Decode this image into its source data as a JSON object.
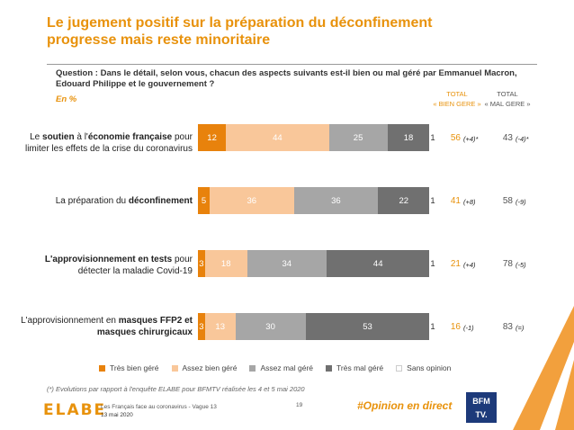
{
  "title": "Le jugement positif sur la préparation du déconfinement progresse mais reste minoritaire",
  "question": "Question : Dans le détail, selon vous, chacun des aspects suivants est-il bien ou mal géré par Emmanuel Macron, Edouard Philippe et le gouvernement ?",
  "unit": "En %",
  "columns": {
    "bien_line1": "TOTAL",
    "bien_line2": "« BIEN GERE »",
    "mal_line1": "TOTAL",
    "mal_line2": "« MAL GERE »"
  },
  "rows": [
    {
      "label_parts": [
        {
          "t": "Le ",
          "b": false
        },
        {
          "t": "soutien",
          "b": true
        },
        {
          "t": " à l'",
          "b": false
        },
        {
          "t": "économie française",
          "b": true
        },
        {
          "t": " pour limiter les effets de la crise du coronavirus",
          "b": false
        }
      ],
      "total_bien": "56",
      "evo_bien": "(+4)*",
      "total_mal": "43",
      "evo_mal": "(-4)*"
    },
    {
      "label_parts": [
        {
          "t": "La préparation du ",
          "b": false
        },
        {
          "t": "déconfinement",
          "b": true
        }
      ],
      "total_bien": "41",
      "evo_bien": "(+8)",
      "total_mal": "58",
      "evo_mal": "(-9)"
    },
    {
      "label_parts": [
        {
          "t": "L'approvisionnement en tests",
          "b": true
        },
        {
          "t": " pour détecter la maladie Covid-19",
          "b": false
        }
      ],
      "total_bien": "21",
      "evo_bien": "(+4)",
      "total_mal": "78",
      "evo_mal": "(-5)"
    },
    {
      "label_parts": [
        {
          "t": "L'approvisionnement en ",
          "b": false
        },
        {
          "t": "masques FFP2 et masques chirurgicaux",
          "b": true
        }
      ],
      "total_bien": "16",
      "evo_bien": "(-1)",
      "total_mal": "83",
      "evo_mal": "(=)"
    }
  ],
  "chart_data": {
    "type": "bar",
    "orientation": "horizontal-stacked",
    "categories": [
      "Le soutien à l'économie française pour limiter les effets de la crise du coronavirus",
      "La préparation du déconfinement",
      "L'approvisionnement en tests pour détecter la maladie Covid-19",
      "L'approvisionnement en masques FFP2 et masques chirurgicaux"
    ],
    "series": [
      {
        "name": "Très bien géré",
        "color": "#E8820C",
        "values": [
          12,
          5,
          3,
          3
        ]
      },
      {
        "name": "Assez bien géré",
        "color": "#F9C79A",
        "values": [
          44,
          36,
          18,
          13
        ]
      },
      {
        "name": "Assez mal géré",
        "color": "#A6A6A6",
        "values": [
          25,
          36,
          34,
          30
        ]
      },
      {
        "name": "Très mal géré",
        "color": "#707070",
        "values": [
          18,
          22,
          44,
          53
        ]
      },
      {
        "name": "Sans opinion",
        "color": "#FFFFFF",
        "values": [
          1,
          1,
          1,
          1
        ]
      }
    ],
    "xlim": [
      0,
      100
    ]
  },
  "footnote": "(*) Evolutions par rapport à l'enquête ELABE pour BFMTV réalisée les 4 et 5 mai 2020",
  "footer": {
    "logo": "ELABE",
    "source": "Les Français face au coronavirus - Vague 13",
    "date": "13 mai 2020",
    "page": "19",
    "hashtag": "#Opinion en direct",
    "partner_line1": "BFM",
    "partner_line2": "TV."
  }
}
